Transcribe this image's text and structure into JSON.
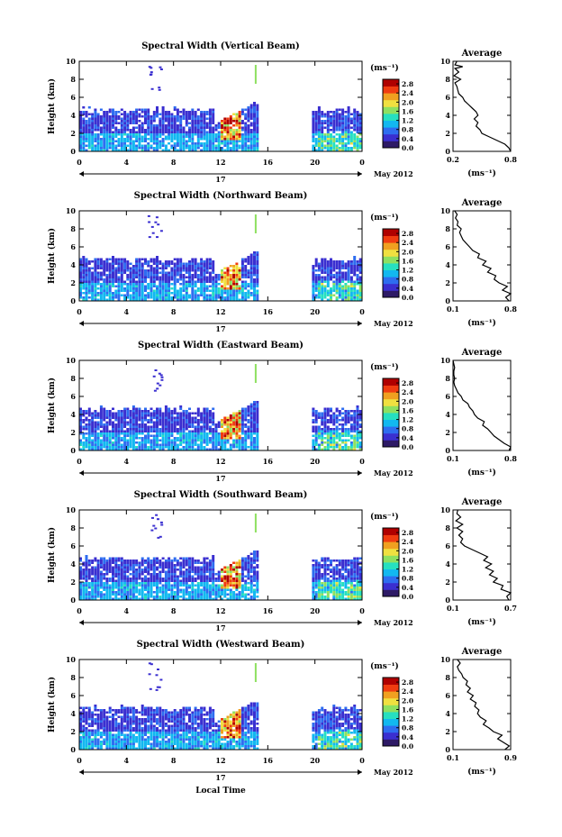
{
  "figure": {
    "bottom_xlabel": "Local Time",
    "date_label": "May 2012",
    "day_label": "17",
    "colorbar_unit": "(ms⁻¹)",
    "average_title": "Average",
    "average_xlabel": "(ms⁻¹)",
    "colors": {
      "stops": [
        "#2e1a66",
        "#3a2fd0",
        "#2e6df0",
        "#12b8f0",
        "#26e0c0",
        "#8ee060",
        "#f0e040",
        "#f0a020",
        "#f03c10",
        "#b00000"
      ]
    }
  },
  "chart_data": [
    {
      "type": "heatmap",
      "title": "Spectral Width (Vertical Beam)",
      "xlabel": "",
      "ylabel": "Height (km)",
      "x_ticks": [
        "0",
        "4",
        "8",
        "12",
        "16",
        "20",
        "0"
      ],
      "xlim": [
        0,
        24
      ],
      "y_ticks": [
        "0",
        "2",
        "4",
        "6",
        "8",
        "10"
      ],
      "ylim": [
        0,
        10
      ],
      "colorbar": {
        "ticks": [
          "0.0",
          "0.4",
          "0.8",
          "1.2",
          "1.6",
          "2.0",
          "2.4",
          "2.8"
        ],
        "range": [
          0,
          3.0
        ]
      },
      "average": {
        "title": "Average",
        "xlabel": "(ms⁻¹)",
        "x_ticks": [
          "0.2",
          "0.8"
        ],
        "xlim": [
          0.2,
          0.8
        ],
        "y_ticks": [
          "0",
          "2",
          "4",
          "6",
          "8",
          "10"
        ],
        "ylim": [
          0,
          10
        ],
        "profile": [
          [
            0.8,
            0
          ],
          [
            0.78,
            0.4
          ],
          [
            0.74,
            0.8
          ],
          [
            0.66,
            1.2
          ],
          [
            0.58,
            1.6
          ],
          [
            0.5,
            2.0
          ],
          [
            0.48,
            2.4
          ],
          [
            0.44,
            2.8
          ],
          [
            0.46,
            3.2
          ],
          [
            0.42,
            3.6
          ],
          [
            0.46,
            4.0
          ],
          [
            0.44,
            4.4
          ],
          [
            0.4,
            4.8
          ],
          [
            0.36,
            5.2
          ],
          [
            0.32,
            5.6
          ],
          [
            0.3,
            6.0
          ],
          [
            0.26,
            6.4
          ],
          [
            0.25,
            6.8
          ],
          [
            0.24,
            7.2
          ],
          [
            0.22,
            7.6
          ],
          [
            0.28,
            8.0
          ],
          [
            0.21,
            8.4
          ],
          [
            0.26,
            8.8
          ],
          [
            0.22,
            9.2
          ],
          [
            0.3,
            9.4
          ],
          [
            0.22,
            9.6
          ],
          [
            0.24,
            10
          ]
        ]
      }
    },
    {
      "type": "heatmap",
      "title": "Spectral Width (Northward Beam)",
      "xlabel": "",
      "ylabel": "Height (km)",
      "x_ticks": [
        "0",
        "4",
        "8",
        "12",
        "16",
        "20",
        "0"
      ],
      "xlim": [
        0,
        24
      ],
      "y_ticks": [
        "0",
        "2",
        "4",
        "6",
        "8",
        "10"
      ],
      "ylim": [
        0,
        10
      ],
      "colorbar": {
        "ticks": [
          "0.0",
          "0.4",
          "0.8",
          "1.2",
          "1.6",
          "2.0",
          "2.4",
          "2.8"
        ],
        "range": [
          0,
          3.0
        ]
      },
      "average": {
        "title": "Average",
        "xlabel": "(ms⁻¹)",
        "x_ticks": [
          "0.1",
          "0.8"
        ],
        "xlim": [
          0.1,
          0.8
        ],
        "y_ticks": [
          "0",
          "2",
          "4",
          "6",
          "8",
          "10"
        ],
        "ylim": [
          0,
          10
        ],
        "profile": [
          [
            0.78,
            0
          ],
          [
            0.74,
            0.4
          ],
          [
            0.8,
            0.8
          ],
          [
            0.7,
            1.2
          ],
          [
            0.76,
            1.6
          ],
          [
            0.66,
            2.0
          ],
          [
            0.6,
            2.4
          ],
          [
            0.62,
            2.8
          ],
          [
            0.52,
            3.2
          ],
          [
            0.56,
            3.6
          ],
          [
            0.46,
            4.0
          ],
          [
            0.5,
            4.4
          ],
          [
            0.4,
            4.8
          ],
          [
            0.42,
            5.2
          ],
          [
            0.34,
            5.6
          ],
          [
            0.3,
            6.0
          ],
          [
            0.26,
            6.4
          ],
          [
            0.22,
            6.8
          ],
          [
            0.2,
            7.2
          ],
          [
            0.18,
            7.6
          ],
          [
            0.2,
            8.0
          ],
          [
            0.15,
            8.4
          ],
          [
            0.16,
            8.8
          ],
          [
            0.13,
            9.2
          ],
          [
            0.15,
            9.6
          ],
          [
            0.12,
            10
          ]
        ]
      }
    },
    {
      "type": "heatmap",
      "title": "Spectral Width (Eastward Beam)",
      "xlabel": "",
      "ylabel": "Height (km)",
      "x_ticks": [
        "0",
        "4",
        "8",
        "12",
        "16",
        "20",
        "0"
      ],
      "xlim": [
        0,
        24
      ],
      "y_ticks": [
        "0",
        "2",
        "4",
        "6",
        "8",
        "10"
      ],
      "ylim": [
        0,
        10
      ],
      "colorbar": {
        "ticks": [
          "0.0",
          "0.4",
          "0.8",
          "1.2",
          "1.6",
          "2.0",
          "2.4",
          "2.8"
        ],
        "range": [
          0,
          3.0
        ]
      },
      "average": {
        "title": "Average",
        "xlabel": "(ms⁻¹)",
        "x_ticks": [
          "0.1",
          "0.8"
        ],
        "xlim": [
          0.1,
          0.8
        ],
        "y_ticks": [
          "0",
          "2",
          "4",
          "6",
          "8",
          "10"
        ],
        "ylim": [
          0,
          10
        ],
        "profile": [
          [
            0.78,
            0
          ],
          [
            0.8,
            0.4
          ],
          [
            0.72,
            0.8
          ],
          [
            0.66,
            1.2
          ],
          [
            0.6,
            1.6
          ],
          [
            0.56,
            2.0
          ],
          [
            0.52,
            2.4
          ],
          [
            0.46,
            2.8
          ],
          [
            0.48,
            3.2
          ],
          [
            0.4,
            3.6
          ],
          [
            0.36,
            4.0
          ],
          [
            0.34,
            4.4
          ],
          [
            0.3,
            4.8
          ],
          [
            0.28,
            5.2
          ],
          [
            0.22,
            5.6
          ],
          [
            0.2,
            6.0
          ],
          [
            0.16,
            6.4
          ],
          [
            0.14,
            6.8
          ],
          [
            0.12,
            7.2
          ],
          [
            0.11,
            7.6
          ],
          [
            0.12,
            8.0
          ],
          [
            0.11,
            8.4
          ],
          [
            0.11,
            8.8
          ],
          [
            0.12,
            9.2
          ],
          [
            0.11,
            9.6
          ],
          [
            0.1,
            10
          ]
        ]
      }
    },
    {
      "type": "heatmap",
      "title": "Spectral Width (Southward Beam)",
      "xlabel": "",
      "ylabel": "Height (km)",
      "x_ticks": [
        "0",
        "4",
        "8",
        "12",
        "16",
        "20",
        "0"
      ],
      "xlim": [
        0,
        24
      ],
      "y_ticks": [
        "0",
        "2",
        "4",
        "6",
        "8",
        "10"
      ],
      "ylim": [
        0,
        10
      ],
      "colorbar": {
        "ticks": [
          "0.0",
          "0.4",
          "0.8",
          "1.2",
          "1.6",
          "2.0",
          "2.4",
          "2.8"
        ],
        "range": [
          0,
          3.0
        ]
      },
      "average": {
        "title": "Average",
        "xlabel": "(ms⁻¹)",
        "x_ticks": [
          "0.1",
          "0.7"
        ],
        "xlim": [
          0.1,
          0.7
        ],
        "y_ticks": [
          "0",
          "2",
          "4",
          "6",
          "8",
          "10"
        ],
        "ylim": [
          0,
          10
        ],
        "profile": [
          [
            0.68,
            0
          ],
          [
            0.66,
            0.4
          ],
          [
            0.7,
            0.8
          ],
          [
            0.6,
            1.2
          ],
          [
            0.62,
            1.6
          ],
          [
            0.52,
            2.0
          ],
          [
            0.56,
            2.4
          ],
          [
            0.48,
            2.8
          ],
          [
            0.52,
            3.2
          ],
          [
            0.44,
            3.6
          ],
          [
            0.5,
            4.0
          ],
          [
            0.42,
            4.4
          ],
          [
            0.46,
            4.8
          ],
          [
            0.38,
            5.2
          ],
          [
            0.3,
            5.6
          ],
          [
            0.22,
            6.0
          ],
          [
            0.18,
            6.4
          ],
          [
            0.2,
            6.8
          ],
          [
            0.16,
            7.2
          ],
          [
            0.2,
            7.6
          ],
          [
            0.14,
            8.0
          ],
          [
            0.2,
            8.4
          ],
          [
            0.13,
            8.8
          ],
          [
            0.18,
            9.2
          ],
          [
            0.14,
            9.6
          ],
          [
            0.15,
            10
          ]
        ]
      }
    },
    {
      "type": "heatmap",
      "title": "Spectral Width (Westward Beam)",
      "xlabel": "Local Time",
      "ylabel": "Height (km)",
      "x_ticks": [
        "0",
        "4",
        "8",
        "12",
        "16",
        "20",
        "0"
      ],
      "xlim": [
        0,
        24
      ],
      "y_ticks": [
        "0",
        "2",
        "4",
        "6",
        "8",
        "10"
      ],
      "ylim": [
        0,
        10
      ],
      "colorbar": {
        "ticks": [
          "0.0",
          "0.4",
          "0.8",
          "1.2",
          "1.6",
          "2.0",
          "2.4",
          "2.8"
        ],
        "range": [
          0,
          3.0
        ]
      },
      "average": {
        "title": "Average",
        "xlabel": "(ms⁻¹)",
        "x_ticks": [
          "0.1",
          "0.9"
        ],
        "xlim": [
          0.1,
          0.9
        ],
        "y_ticks": [
          "0",
          "2",
          "4",
          "6",
          "8",
          "10"
        ],
        "ylim": [
          0,
          10
        ],
        "profile": [
          [
            0.82,
            0
          ],
          [
            0.88,
            0.4
          ],
          [
            0.8,
            0.8
          ],
          [
            0.72,
            1.2
          ],
          [
            0.78,
            1.6
          ],
          [
            0.66,
            2.0
          ],
          [
            0.6,
            2.4
          ],
          [
            0.52,
            2.8
          ],
          [
            0.56,
            3.2
          ],
          [
            0.48,
            3.6
          ],
          [
            0.44,
            4.0
          ],
          [
            0.46,
            4.4
          ],
          [
            0.4,
            4.8
          ],
          [
            0.42,
            5.2
          ],
          [
            0.34,
            5.6
          ],
          [
            0.38,
            6.0
          ],
          [
            0.3,
            6.4
          ],
          [
            0.34,
            6.8
          ],
          [
            0.28,
            7.2
          ],
          [
            0.3,
            7.6
          ],
          [
            0.24,
            8.0
          ],
          [
            0.22,
            8.4
          ],
          [
            0.18,
            8.8
          ],
          [
            0.16,
            9.2
          ],
          [
            0.2,
            9.6
          ],
          [
            0.16,
            10
          ]
        ]
      }
    }
  ]
}
